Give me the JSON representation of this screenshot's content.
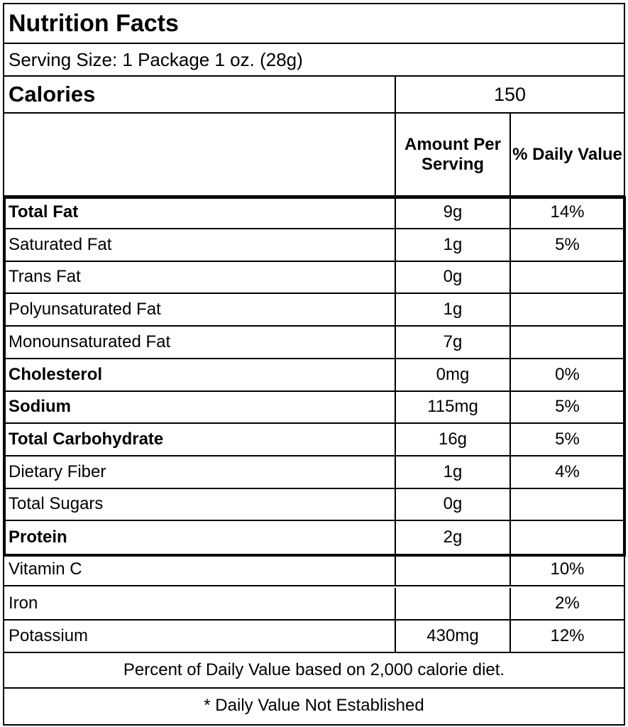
{
  "header": {
    "title": "Nutrition Facts",
    "serving_size": "Serving Size: 1 Package 1 oz. (28g)",
    "calories_label": "Calories",
    "calories_value": "150"
  },
  "table": {
    "columns": [
      "Amount Per Serving",
      "% Daily Value"
    ],
    "rows": [
      [
        "Total Fat",
        "9g",
        "14%"
      ],
      [
        "Saturated Fat",
        "1g",
        "5%"
      ],
      [
        "Trans Fat",
        "0g",
        null
      ],
      [
        "Polyunsaturated Fat",
        "1g",
        null
      ],
      [
        "Monounsaturated Fat",
        "7g",
        null
      ],
      [
        "Cholesterol",
        "0mg",
        "0%"
      ],
      [
        "Sodium",
        "115mg",
        "5%"
      ],
      [
        "Total Carbohydrate",
        "16g",
        "5%"
      ],
      [
        "Dietary Fiber",
        "1g",
        "4%"
      ],
      [
        "Total Sugars",
        "0g",
        null
      ],
      [
        "Protein",
        "2g",
        null
      ],
      [
        "Vitamin C",
        null,
        "10%"
      ],
      [
        "Iron",
        null,
        "2%"
      ],
      [
        "Potassium",
        "430mg",
        "12%"
      ]
    ]
  },
  "footer": {
    "note": "Percent of Daily Value based on 2,000 calorie diet.",
    "asterisk": "* Daily Value Not Established"
  }
}
